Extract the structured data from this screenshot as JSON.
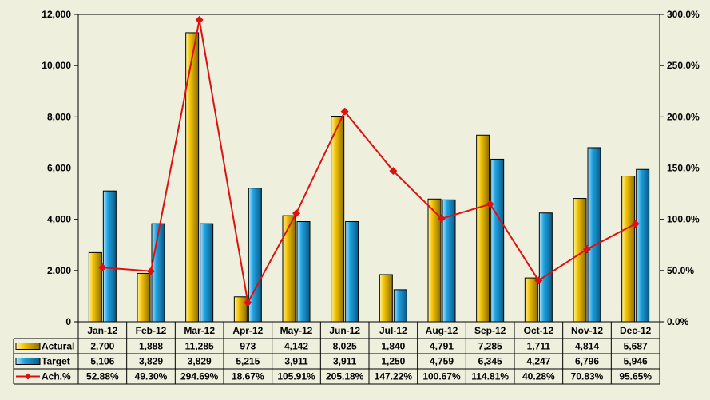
{
  "chart_data": {
    "type": "bar",
    "categories": [
      "Jan-12",
      "Feb-12",
      "Mar-12",
      "Apr-12",
      "May-12",
      "Jun-12",
      "Jul-12",
      "Aug-12",
      "Sep-12",
      "Oct-12",
      "Nov-12",
      "Dec-12"
    ],
    "series": [
      {
        "name": "Actural",
        "type": "bar",
        "axis": "left",
        "color": "#f2c200",
        "values": [
          2700,
          1888,
          11285,
          973,
          4142,
          8025,
          1840,
          4791,
          7285,
          1711,
          4814,
          5687
        ],
        "labels": [
          "2,700",
          "1,888",
          "11,285",
          "973",
          "4,142",
          "8,025",
          "1,840",
          "4,791",
          "7,285",
          "1,711",
          "4,814",
          "5,687"
        ]
      },
      {
        "name": "Target",
        "type": "bar",
        "axis": "left",
        "color": "#1fa2e0",
        "values": [
          5106,
          3829,
          3829,
          5215,
          3911,
          3911,
          1250,
          4759,
          6345,
          4247,
          6796,
          5946
        ],
        "labels": [
          "5,106",
          "3,829",
          "3,829",
          "5,215",
          "3,911",
          "3,911",
          "1,250",
          "4,759",
          "6,345",
          "4,247",
          "6,796",
          "5,946"
        ]
      },
      {
        "name": "Ach.%",
        "type": "line",
        "axis": "right",
        "color": "#dd1111",
        "values": [
          52.88,
          49.3,
          294.69,
          18.67,
          105.91,
          205.18,
          147.22,
          100.67,
          114.81,
          40.28,
          70.83,
          95.65
        ],
        "labels": [
          "52.88%",
          "49.30%",
          "294.69%",
          "18.67%",
          "105.91%",
          "205.18%",
          "147.22%",
          "100.67%",
          "114.81%",
          "40.28%",
          "70.83%",
          "95.65%"
        ]
      }
    ],
    "ylim": [
      0,
      12000
    ],
    "y_ticks": [
      "0",
      "2,000",
      "4,000",
      "6,000",
      "8,000",
      "10,000",
      "12,000"
    ],
    "y2lim": [
      0,
      300
    ],
    "y2_ticks": [
      "0.0%",
      "50.0%",
      "100.0%",
      "150.0%",
      "200.0%",
      "250.0%",
      "300.0%"
    ],
    "grid": false,
    "data_table": true,
    "background": "#eef0dd"
  }
}
